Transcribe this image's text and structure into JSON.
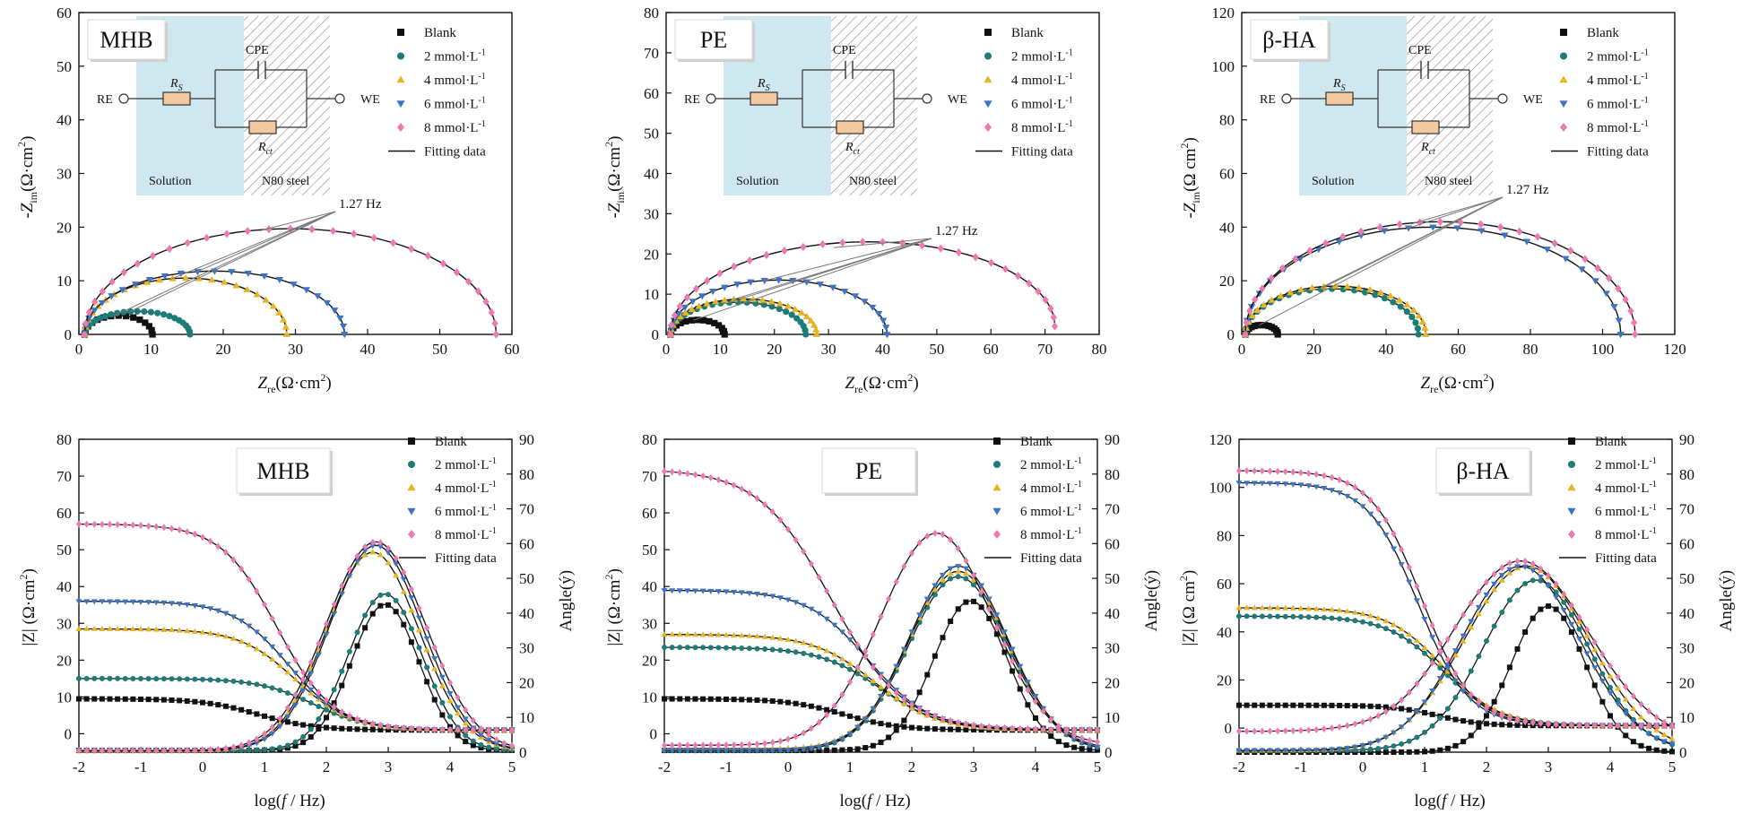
{
  "figure": {
    "legend_entries": [
      "Blank",
      "2 mmol·L",
      "4 mmol·L",
      "6 mmol·L",
      "8 mmol·L"
    ],
    "legend_superscript": "-1",
    "fitting_label": "Fitting data",
    "freq_label": "1.27 Hz",
    "circuit": {
      "re": "RE",
      "we": "WE",
      "rs_main": "R",
      "rs_sub": "S",
      "rct_main": "R",
      "rct_sub": "ct",
      "cpe": "CPE",
      "solution": "Solution",
      "steel": "N80 steel"
    },
    "colors": {
      "blank": "#111111",
      "c2": "#1b7c78",
      "c4": "#e8b422",
      "c6": "#3e73c4",
      "c8": "#ee78b0",
      "fit": "#111111",
      "badge_text": "#c0392b",
      "solution_fill": "#cfe7ee"
    }
  },
  "chart_data": [
    {
      "type": "line",
      "kind": "nyquist",
      "title": "MHB",
      "xlabel_main": "Z",
      "xlabel_sub": "re",
      "xlabel_unit": "(Ω·cm",
      "xlabel_sup": "2",
      "xlabel_close": ")",
      "ylabel_main": "-Z",
      "ylabel_sub": "im",
      "ylabel_unit": "(Ω·cm",
      "ylabel_sup": "2",
      "ylabel_close": ")",
      "xlim": [
        0,
        60
      ],
      "ylim": [
        0,
        60
      ],
      "xticks": [
        "0",
        "10",
        "20",
        "30",
        "40",
        "50",
        "60"
      ],
      "yticks": [
        "0",
        "10",
        "20",
        "30",
        "40",
        "50",
        "60"
      ],
      "series": [
        {
          "name": "Blank",
          "rs": 0.8,
          "rct": 9.4,
          "peak": 3.5,
          "tail": 0.0
        },
        {
          "name": "2 mmol·L-1",
          "rs": 0.8,
          "rct": 14.6,
          "peak": 4.3,
          "tail": 0.0
        },
        {
          "name": "4 mmol·L-1",
          "rs": 0.8,
          "rct": 28.0,
          "peak": 10.5,
          "tail": 0.0
        },
        {
          "name": "6 mmol·L-1",
          "rs": 0.8,
          "rct": 36.0,
          "peak": 11.8,
          "tail": 0.0
        },
        {
          "name": "8 mmol·L-1",
          "rs": 0.8,
          "rct": 57.0,
          "peak": 19.7,
          "tail": 0.0
        }
      ]
    },
    {
      "type": "line",
      "kind": "nyquist",
      "title": "PE",
      "xlabel_main": "Z",
      "xlabel_sub": "re",
      "xlabel_unit": "(Ω·cm",
      "xlabel_sup": "2",
      "xlabel_close": ")",
      "ylabel_main": "-Z",
      "ylabel_sub": "im",
      "ylabel_unit": "(Ω·cm",
      "ylabel_sup": "2",
      "ylabel_close": ")",
      "xlim": [
        0,
        80
      ],
      "ylim": [
        0,
        80
      ],
      "xticks": [
        "0",
        "10",
        "20",
        "30",
        "40",
        "50",
        "60",
        "70",
        "80"
      ],
      "yticks": [
        "0",
        "10",
        "20",
        "30",
        "40",
        "50",
        "60",
        "70",
        "80"
      ],
      "series": [
        {
          "name": "Blank",
          "rs": 0.8,
          "rct": 10.0,
          "peak": 3.6,
          "tail": 0.0
        },
        {
          "name": "2 mmol·L-1",
          "rs": 0.8,
          "rct": 25.0,
          "peak": 8.0,
          "tail": 0.0
        },
        {
          "name": "4 mmol·L-1",
          "rs": 0.8,
          "rct": 27.0,
          "peak": 8.8,
          "tail": 0.0
        },
        {
          "name": "6 mmol·L-1",
          "rs": 0.8,
          "rct": 40.0,
          "peak": 13.5,
          "tail": 0.0
        },
        {
          "name": "8 mmol·L-1",
          "rs": 0.8,
          "rct": 71.0,
          "peak": 22.0,
          "tail": 2.0
        }
      ]
    },
    {
      "type": "line",
      "kind": "nyquist",
      "title": "β-HA",
      "xlabel_main": "Z",
      "xlabel_sub": "re",
      "xlabel_unit": "(Ω·cm",
      "xlabel_sup": "2",
      "xlabel_close": ")",
      "ylabel_main": "-Z",
      "ylabel_sub": "im",
      "ylabel_unit": "(Ω cm",
      "ylabel_sup": "2",
      "ylabel_close": ")",
      "xlim": [
        0,
        120
      ],
      "ylim": [
        0,
        120
      ],
      "xticks": [
        "0",
        "20",
        "40",
        "60",
        "80",
        "100",
        "120"
      ],
      "yticks": [
        "0",
        "20",
        "40",
        "60",
        "80",
        "100",
        "120"
      ],
      "series": [
        {
          "name": "Blank",
          "rs": 1.0,
          "rct": 9.0,
          "peak": 3.5,
          "tail": 0.0
        },
        {
          "name": "2 mmol·L-1",
          "rs": 1.0,
          "rct": 48.0,
          "peak": 17.0,
          "tail": 0.0
        },
        {
          "name": "4 mmol·L-1",
          "rs": 1.0,
          "rct": 50.0,
          "peak": 18.0,
          "tail": 0.0
        },
        {
          "name": "6 mmol·L-1",
          "rs": 1.0,
          "rct": 104.0,
          "peak": 40.0,
          "tail": 0.0
        },
        {
          "name": "8 mmol·L-1",
          "rs": 1.0,
          "rct": 108.0,
          "peak": 42.0,
          "tail": 0.0
        }
      ]
    },
    {
      "type": "line",
      "kind": "bode",
      "title": "MHB",
      "xlabel_main": "log(",
      "xlabel_italic": "f",
      "xlabel_rest": " / Hz)",
      "ylabel_text": "|Z| (Ω·cm",
      "ylabel_sup": "2",
      "ylabel_close": ")",
      "y2label": "Angle(ý)",
      "xlim": [
        -2,
        5
      ],
      "ylim": [
        -5,
        80
      ],
      "y2lim": [
        0,
        90
      ],
      "xticks": [
        "-2",
        "-1",
        "0",
        "1",
        "2",
        "3",
        "4",
        "5"
      ],
      "yticks": [
        "0",
        "10",
        "20",
        "30",
        "40",
        "50",
        "60",
        "70",
        "80"
      ],
      "y2ticks": [
        "0",
        "10",
        "20",
        "30",
        "40",
        "50",
        "60",
        "70",
        "80",
        "90"
      ],
      "series": [
        {
          "name": "Blank",
          "zlow": 9.5,
          "zhigh": 1.0,
          "fz": 0.9,
          "wz": 1.0,
          "apeak": 42,
          "alog": 2.95,
          "asig": 0.55,
          "abase": 0.5,
          "aslope": 0.0
        },
        {
          "name": "2 mmol·L-1",
          "zlow": 15.0,
          "zhigh": 1.0,
          "fz": 1.8,
          "wz": 1.0,
          "apeak": 45,
          "alog": 2.95,
          "asig": 0.6,
          "abase": 0.5,
          "aslope": 0.0
        },
        {
          "name": "4 mmol·L-1",
          "zlow": 28.5,
          "zhigh": 1.0,
          "fz": 1.5,
          "wz": 1.0,
          "apeak": 57,
          "alog": 2.75,
          "asig": 0.75,
          "abase": 0.5,
          "aslope": 0.0
        },
        {
          "name": "6 mmol·L-1",
          "zlow": 36.0,
          "zhigh": 1.0,
          "fz": 1.4,
          "wz": 1.0,
          "apeak": 59,
          "alog": 2.8,
          "asig": 0.75,
          "abase": 0.5,
          "aslope": 0.0
        },
        {
          "name": "8 mmol·L-1",
          "zlow": 57.0,
          "zhigh": 1.0,
          "fz": 1.2,
          "wz": 1.0,
          "apeak": 60,
          "alog": 2.8,
          "asig": 0.8,
          "abase": 0.5,
          "aslope": 0.0
        }
      ]
    },
    {
      "type": "line",
      "kind": "bode",
      "title": "PE",
      "xlabel_main": "log(",
      "xlabel_italic": "f",
      "xlabel_rest": " / Hz)",
      "ylabel_text": "|Z| (Ω·cm",
      "ylabel_sup": "2",
      "ylabel_close": ")",
      "y2label": "Angle(ý)",
      "xlim": [
        -2,
        5
      ],
      "ylim": [
        -5,
        80
      ],
      "y2lim": [
        0,
        90
      ],
      "xticks": [
        "-2",
        "-1",
        "0",
        "1",
        "2",
        "3",
        "4",
        "5"
      ],
      "yticks": [
        "0",
        "10",
        "20",
        "30",
        "40",
        "50",
        "60",
        "70",
        "80"
      ],
      "y2ticks": [
        "0",
        "10",
        "20",
        "30",
        "40",
        "50",
        "60",
        "70",
        "80",
        "90"
      ],
      "series": [
        {
          "name": "Blank",
          "zlow": 9.5,
          "zhigh": 1.0,
          "fz": 0.9,
          "wz": 1.0,
          "apeak": 43,
          "alog": 2.95,
          "asig": 0.6,
          "abase": 0.5,
          "aslope": 0.0
        },
        {
          "name": "2 mmol·L-1",
          "zlow": 23.5,
          "zhigh": 1.0,
          "fz": 1.5,
          "wz": 1.1,
          "apeak": 50,
          "alog": 2.75,
          "asig": 0.8,
          "abase": 0.5,
          "aslope": 0.0
        },
        {
          "name": "4 mmol·L-1",
          "zlow": 27.0,
          "zhigh": 1.0,
          "fz": 1.4,
          "wz": 1.1,
          "apeak": 51,
          "alog": 2.75,
          "asig": 0.8,
          "abase": 1.0,
          "aslope": 0.0
        },
        {
          "name": "6 mmol·L-1",
          "zlow": 39.0,
          "zhigh": 1.0,
          "fz": 1.3,
          "wz": 1.1,
          "apeak": 53,
          "alog": 2.75,
          "asig": 0.8,
          "abase": 0.5,
          "aslope": 0.0
        },
        {
          "name": "8 mmol·L-1",
          "zlow": 72.0,
          "zhigh": 1.0,
          "fz": 0.7,
          "wz": 1.3,
          "apeak": 61,
          "alog": 2.4,
          "asig": 0.9,
          "abase": 2.0,
          "aslope": 0.0
        }
      ]
    },
    {
      "type": "line",
      "kind": "bode",
      "title": "β-HA",
      "xlabel_main": "log(",
      "xlabel_italic": "f",
      "xlabel_rest": " / Hz)",
      "ylabel_text": "|Z| (Ω cm",
      "ylabel_sup": "2",
      "ylabel_close": ")",
      "y2label": "Angle(ý)",
      "xlim": [
        -2,
        5
      ],
      "ylim": [
        -10,
        120
      ],
      "y2lim": [
        0,
        90
      ],
      "xticks": [
        "-2",
        "-1",
        "0",
        "1",
        "2",
        "3",
        "4",
        "5"
      ],
      "yticks": [
        "0",
        "20",
        "40",
        "60",
        "80",
        "100",
        "120"
      ],
      "y2ticks": [
        "0",
        "10",
        "20",
        "30",
        "40",
        "50",
        "60",
        "70",
        "80",
        "90"
      ],
      "series": [
        {
          "name": "Blank",
          "zlow": 9.5,
          "zhigh": 1.0,
          "fz": 1.2,
          "wz": 0.8,
          "apeak": 42,
          "alog": 3.0,
          "asig": 0.6,
          "abase": 0.0,
          "aslope": 0.0
        },
        {
          "name": "2 mmol·L-1",
          "zlow": 46.5,
          "zhigh": 1.0,
          "fz": 1.3,
          "wz": 1.0,
          "apeak": 49,
          "alog": 2.8,
          "asig": 0.85,
          "abase": 0.5,
          "aslope": 0.0
        },
        {
          "name": "4 mmol·L-1",
          "zlow": 50.0,
          "zhigh": 1.0,
          "fz": 1.3,
          "wz": 1.0,
          "apeak": 53,
          "alog": 2.65,
          "asig": 1.0,
          "abase": 0.5,
          "aslope": 0.0
        },
        {
          "name": "6 mmol·L-1",
          "zlow": 102.0,
          "zhigh": 1.0,
          "fz": 0.9,
          "wz": 0.9,
          "apeak": 53,
          "alog": 2.55,
          "asig": 0.95,
          "abase": 0.5,
          "aslope": 0.0
        },
        {
          "name": "8 mmol·L-1",
          "zlow": 107.0,
          "zhigh": 1.0,
          "fz": 0.95,
          "wz": 0.9,
          "apeak": 52,
          "alog": 2.55,
          "asig": 1.1,
          "abase": 3.0,
          "aslope": 3.0
        }
      ]
    }
  ]
}
